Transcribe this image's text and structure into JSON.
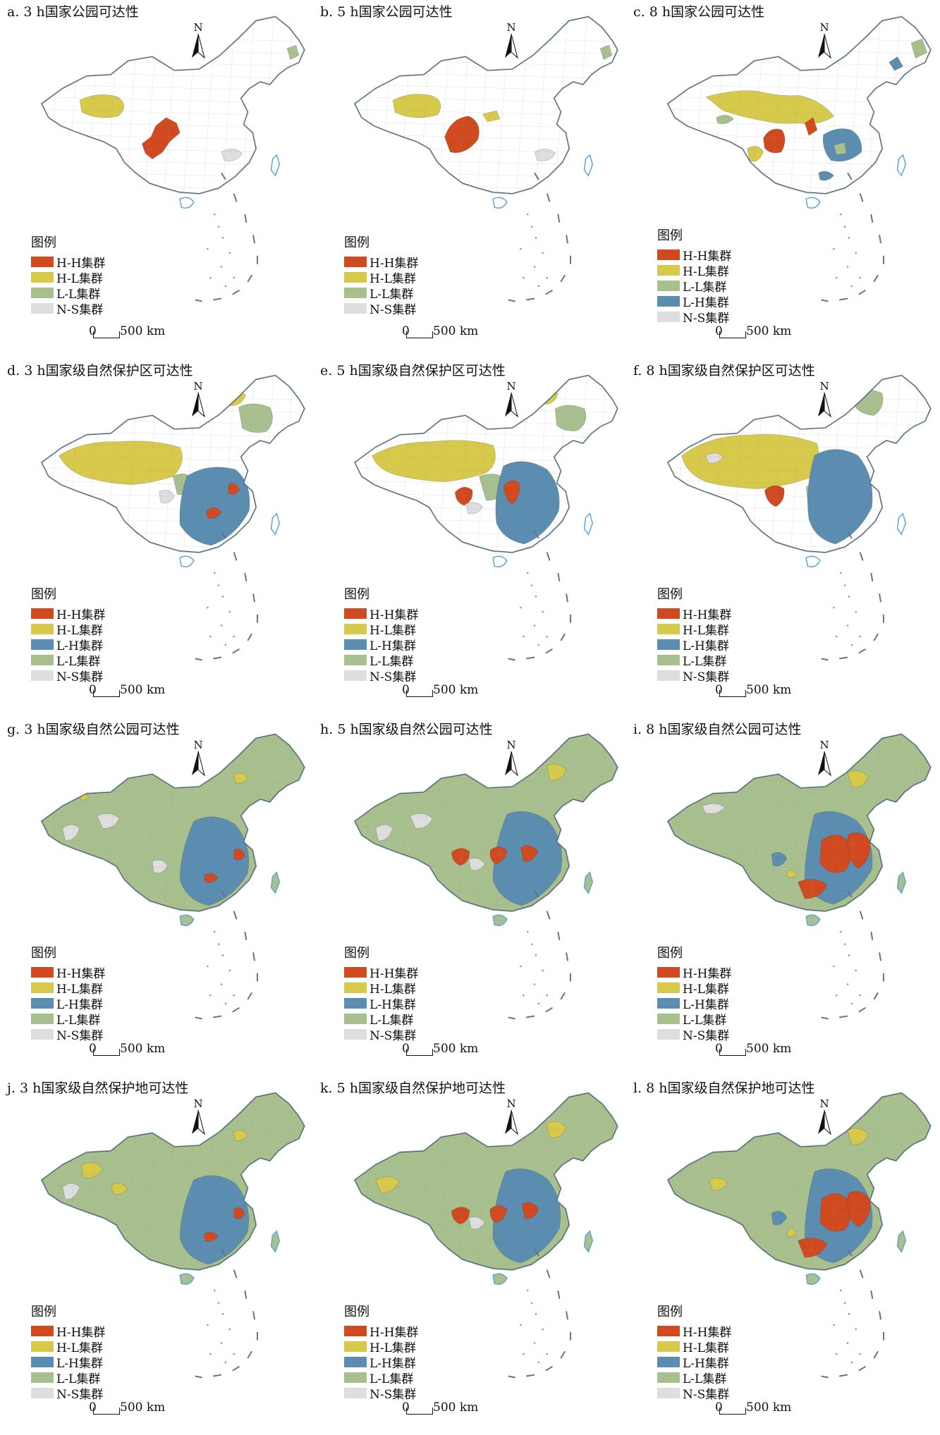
{
  "colors": {
    "HH": "#d1491f",
    "HL": "#d7c94a",
    "LH": "#5b8db1",
    "LL": "#a8bf8e",
    "NS": "#dedede",
    "base": "#ffffff",
    "border": "#7a7a7a",
    "sea": "#5aa6d6"
  },
  "legend_title": "图例",
  "north_label": "N",
  "scale": {
    "zero": "0",
    "label": "500 km"
  },
  "category_labels": {
    "HH": "H-H集群",
    "HL": "H-L集群",
    "LH": "L-H集群",
    "LL": "L-L集群",
    "NS": "N-S集群"
  },
  "panels": [
    {
      "title": "a. 3 h国家公园可达性",
      "base": "base",
      "legend": [
        "HH",
        "HL",
        "LL",
        "NS"
      ]
    },
    {
      "title": "b. 5 h国家公园可达性",
      "base": "base",
      "legend": [
        "HH",
        "HL",
        "LL",
        "NS"
      ]
    },
    {
      "title": "c. 8 h国家公园可达性",
      "base": "base",
      "legend": [
        "HH",
        "HL",
        "LL",
        "LH",
        "NS"
      ]
    },
    {
      "title": "d. 3 h国家级自然保护区可达性",
      "base": "base",
      "legend": [
        "HH",
        "HL",
        "LH",
        "LL",
        "NS"
      ]
    },
    {
      "title": "e. 5 h国家级自然保护区可达性",
      "base": "base",
      "legend": [
        "HH",
        "HL",
        "LH",
        "LL",
        "NS"
      ]
    },
    {
      "title": "f. 8 h国家级自然保护区可达性",
      "base": "base",
      "legend": [
        "HH",
        "HL",
        "LH",
        "LL",
        "NS"
      ]
    },
    {
      "title": "g. 3 h国家级自然公园可达性",
      "base": "LL",
      "legend": [
        "HH",
        "HL",
        "LH",
        "LL",
        "NS"
      ]
    },
    {
      "title": "h. 5 h国家级自然公园可达性",
      "base": "LL",
      "legend": [
        "HH",
        "HL",
        "LH",
        "LL",
        "NS"
      ]
    },
    {
      "title": "i. 8 h国家级自然公园可达性",
      "base": "LL",
      "legend": [
        "HH",
        "HL",
        "LH",
        "LL",
        "NS"
      ]
    },
    {
      "title": "j. 3 h国家级自然保护地可达性",
      "base": "LL",
      "legend": [
        "HH",
        "HL",
        "LH",
        "LL",
        "NS"
      ]
    },
    {
      "title": "k. 5 h国家级自然保护地可达性",
      "base": "LL",
      "legend": [
        "HH",
        "HL",
        "LH",
        "LL",
        "NS"
      ]
    },
    {
      "title": "l. 8 h国家级自然保护地可达性",
      "base": "LL",
      "legend": [
        "HH",
        "HL",
        "LH",
        "LL",
        "NS"
      ]
    }
  ]
}
